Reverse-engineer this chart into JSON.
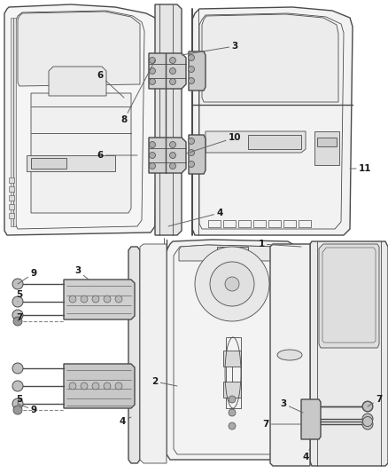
{
  "bg_color": "#ffffff",
  "line_color": "#4a4a4a",
  "label_color": "#1a1a1a",
  "callout_color": "#666666",
  "lw_main": 1.0,
  "lw_thin": 0.6,
  "lw_thick": 1.4,
  "label_fontsize": 7.5,
  "fig_width": 4.38,
  "fig_height": 5.33,
  "dpi": 100
}
